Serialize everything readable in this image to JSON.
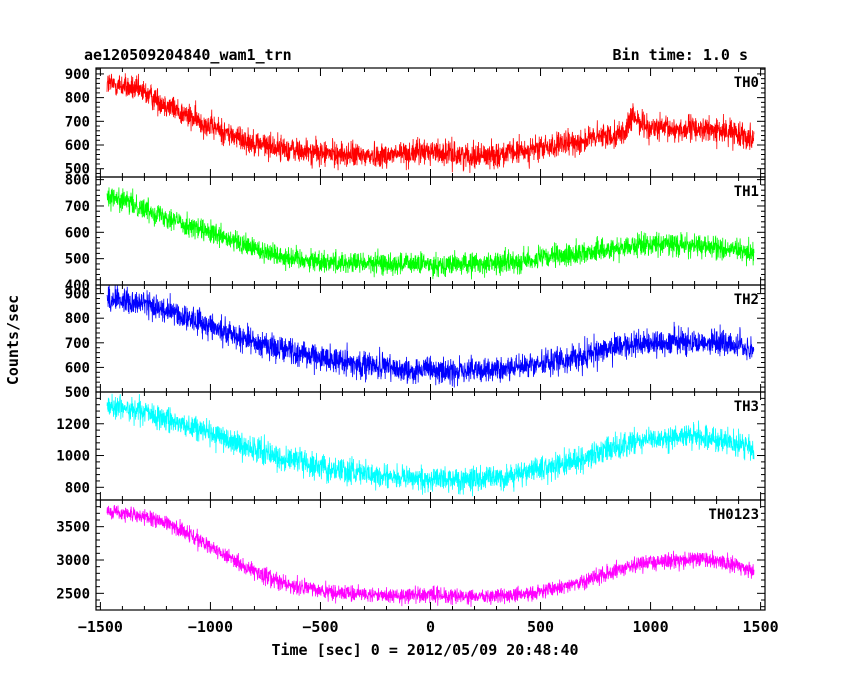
{
  "header": {
    "title": "ae120509204840_wam1_trn",
    "bin_time": "Bin time: 1.0 s"
  },
  "chart_data": {
    "type": "line",
    "xlabel": "Time [sec] 0 = 2012/05/09 20:48:40",
    "ylabel": "Counts/sec",
    "xlim": [
      -1520,
      1520
    ],
    "xticks": [
      -1500,
      -1000,
      -500,
      0,
      500,
      1000,
      1500
    ],
    "xticklabels": [
      "−1500",
      "−1000",
      "−500",
      "0",
      "500",
      "1000",
      "1500"
    ],
    "panels": [
      {
        "name": "TH0",
        "color": "#ff0000",
        "ylim": [
          465,
          925
        ],
        "yticks": [
          500,
          600,
          700,
          800,
          900
        ],
        "yticklabels": [
          "500",
          "600",
          "700",
          "800",
          "900"
        ],
        "noise": 38,
        "knots_x": [
          -1470,
          -1400,
          -1300,
          -1200,
          -1100,
          -1000,
          -900,
          -800,
          -700,
          -600,
          -500,
          -400,
          -300,
          -200,
          -100,
          0,
          100,
          200,
          300,
          400,
          500,
          600,
          700,
          800,
          880,
          920,
          1000,
          1100,
          1200,
          1300,
          1400,
          1470
        ],
        "knots_y": [
          860,
          850,
          820,
          770,
          720,
          680,
          640,
          610,
          590,
          575,
          565,
          560,
          555,
          558,
          565,
          575,
          560,
          555,
          560,
          570,
          585,
          600,
          620,
          640,
          650,
          720,
          670,
          665,
          670,
          660,
          650,
          630
        ]
      },
      {
        "name": "TH1",
        "color": "#00ff00",
        "ylim": [
          400,
          810
        ],
        "yticks": [
          400,
          500,
          600,
          700,
          800
        ],
        "yticklabels": [
          "400",
          "500",
          "600",
          "700",
          "800"
        ],
        "noise": 30,
        "knots_x": [
          -1470,
          -1400,
          -1300,
          -1200,
          -1100,
          -1000,
          -900,
          -800,
          -700,
          -600,
          -500,
          -400,
          -300,
          -200,
          -100,
          0,
          100,
          200,
          300,
          400,
          500,
          600,
          700,
          800,
          900,
          1000,
          1100,
          1200,
          1300,
          1400,
          1470
        ],
        "knots_y": [
          740,
          720,
          690,
          660,
          625,
          595,
          565,
          540,
          515,
          500,
          490,
          485,
          482,
          480,
          480,
          478,
          478,
          480,
          484,
          490,
          500,
          510,
          522,
          535,
          548,
          555,
          555,
          550,
          540,
          530,
          520
        ]
      },
      {
        "name": "TH2",
        "color": "#0000ff",
        "ylim": [
          500,
          935
        ],
        "yticks": [
          500,
          600,
          700,
          800,
          900
        ],
        "yticklabels": [
          "500",
          "600",
          "700",
          "800",
          "900"
        ],
        "noise": 38,
        "knots_x": [
          -1470,
          -1400,
          -1300,
          -1200,
          -1100,
          -1000,
          -900,
          -800,
          -700,
          -600,
          -500,
          -400,
          -300,
          -200,
          -100,
          0,
          100,
          200,
          300,
          400,
          500,
          600,
          700,
          800,
          900,
          1000,
          1100,
          1200,
          1300,
          1400,
          1470
        ],
        "knots_y": [
          880,
          875,
          860,
          830,
          800,
          770,
          735,
          705,
          680,
          660,
          640,
          625,
          610,
          600,
          590,
          585,
          583,
          585,
          590,
          600,
          615,
          630,
          650,
          670,
          690,
          700,
          705,
          705,
          700,
          690,
          670
        ]
      },
      {
        "name": "TH3",
        "color": "#00ffff",
        "ylim": [
          720,
          1400
        ],
        "yticks": [
          800,
          1000,
          1200
        ],
        "yticklabels": [
          "800",
          "1000",
          "1200"
        ],
        "noise": 55,
        "knots_x": [
          -1470,
          -1400,
          -1300,
          -1200,
          -1100,
          -1000,
          -900,
          -800,
          -700,
          -600,
          -500,
          -400,
          -300,
          -200,
          -100,
          0,
          100,
          200,
          300,
          400,
          500,
          600,
          700,
          800,
          900,
          1000,
          1100,
          1200,
          1300,
          1400,
          1470
        ],
        "knots_y": [
          1310,
          1300,
          1270,
          1230,
          1185,
          1140,
          1090,
          1040,
          995,
          960,
          930,
          905,
          885,
          870,
          860,
          855,
          850,
          852,
          860,
          880,
          910,
          945,
          985,
          1030,
          1070,
          1100,
          1120,
          1120,
          1100,
          1070,
          1040
        ]
      },
      {
        "name": "TH0123",
        "color": "#ff00ff",
        "ylim": [
          2250,
          3900
        ],
        "yticks": [
          2500,
          3000,
          3500
        ],
        "yticklabels": [
          "2500",
          "3000",
          "3500"
        ],
        "noise": 85,
        "knots_x": [
          -1470,
          -1400,
          -1300,
          -1200,
          -1100,
          -1000,
          -900,
          -800,
          -700,
          -600,
          -500,
          -400,
          -300,
          -200,
          -100,
          0,
          100,
          200,
          300,
          400,
          500,
          600,
          700,
          800,
          900,
          1000,
          1100,
          1200,
          1300,
          1400,
          1470
        ],
        "knots_y": [
          3730,
          3710,
          3650,
          3550,
          3400,
          3200,
          3000,
          2820,
          2680,
          2600,
          2540,
          2500,
          2480,
          2470,
          2460,
          2490,
          2450,
          2440,
          2450,
          2480,
          2520,
          2600,
          2700,
          2800,
          2900,
          2970,
          3000,
          3010,
          2980,
          2920,
          2820
        ]
      }
    ]
  }
}
